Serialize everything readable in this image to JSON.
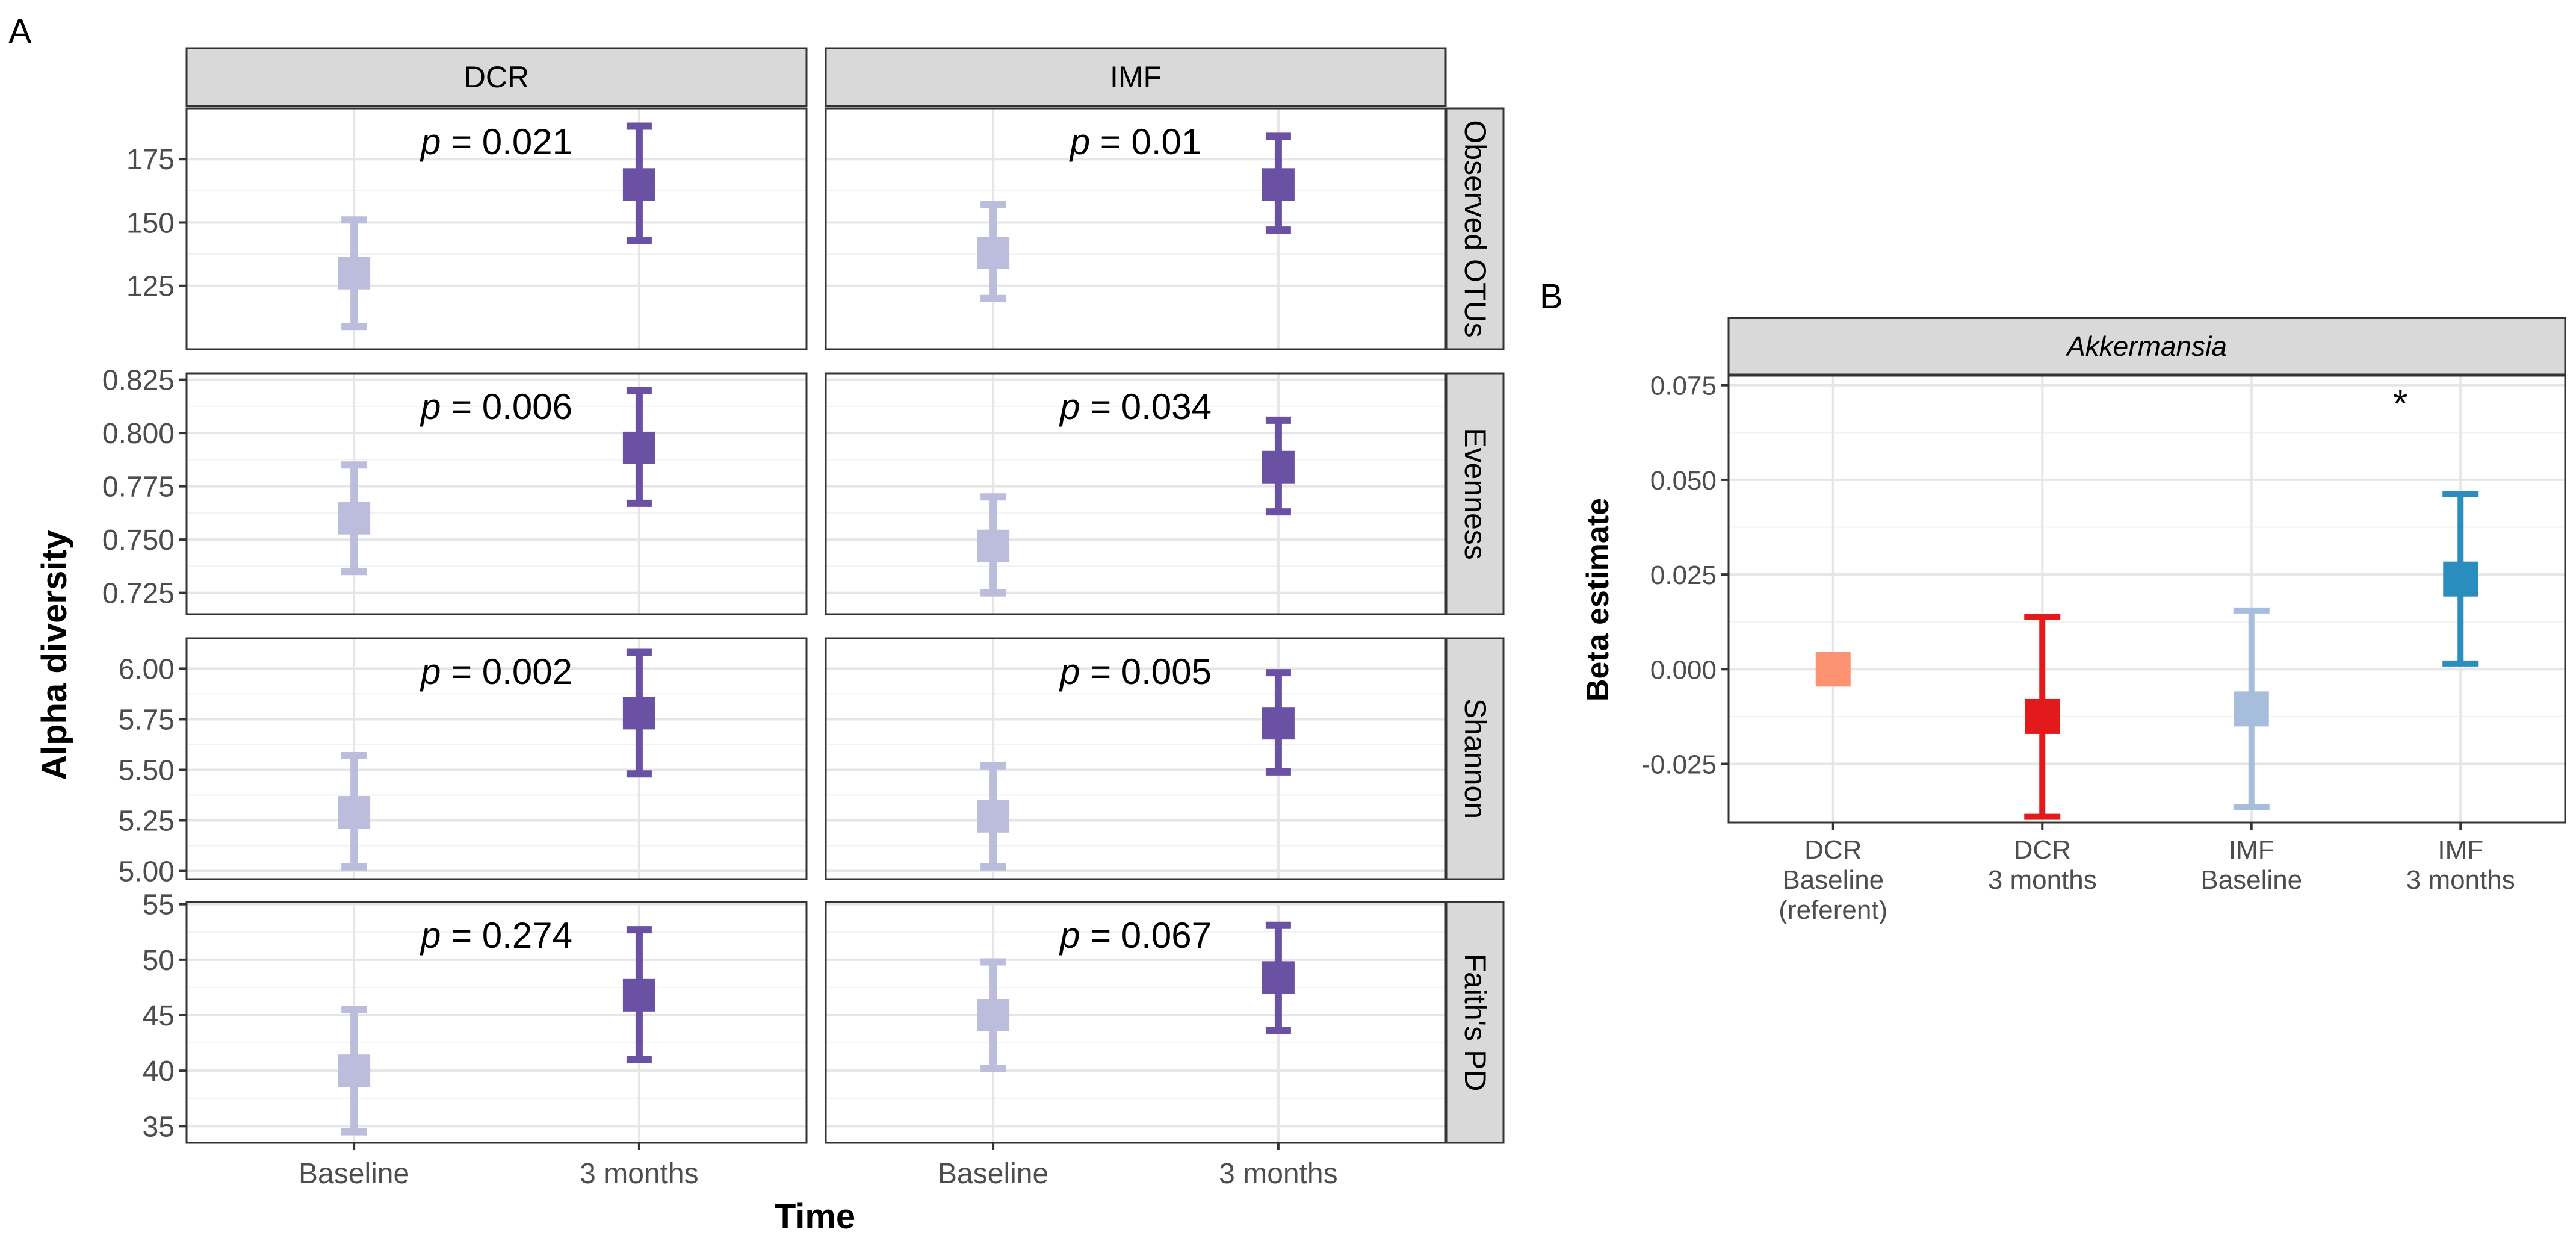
{
  "panel_a": {
    "label": "A",
    "xlabel": "Time",
    "ylabel": "Alpha diversity",
    "columns": [
      "DCR",
      "IMF"
    ],
    "categories": [
      "Baseline",
      "3 months"
    ],
    "colors": {
      "baseline": "#bcbddc",
      "followup": "#6a51a3"
    },
    "rows": [
      {
        "strip": "Observed OTUs",
        "ylim": [
          100,
          195
        ],
        "ticks": [
          125,
          150,
          175
        ],
        "tick_labels": [
          "125",
          "150",
          "175"
        ],
        "cells": [
          {
            "column": "DCR",
            "p_prefix": "p",
            "p_rest": " = 0.021",
            "baseline": {
              "mean": 130,
              "lo": 109,
              "hi": 151
            },
            "followup": {
              "mean": 165,
              "lo": 143,
              "hi": 188
            }
          },
          {
            "column": "IMF",
            "p_prefix": "p",
            "p_rest": " = 0.01",
            "baseline": {
              "mean": 138,
              "lo": 120,
              "hi": 157
            },
            "followup": {
              "mean": 165,
              "lo": 147,
              "hi": 184
            }
          }
        ]
      },
      {
        "strip": "Evenness",
        "ylim": [
          0.715,
          0.828
        ],
        "ticks": [
          0.725,
          0.75,
          0.775,
          0.8,
          0.825
        ],
        "tick_labels": [
          "0.725",
          "0.750",
          "0.775",
          "0.800",
          "0.825"
        ],
        "cells": [
          {
            "column": "DCR",
            "p_prefix": "p",
            "p_rest": " = 0.006",
            "baseline": {
              "mean": 0.76,
              "lo": 0.735,
              "hi": 0.785
            },
            "followup": {
              "mean": 0.793,
              "lo": 0.767,
              "hi": 0.82
            }
          },
          {
            "column": "IMF",
            "p_prefix": "p",
            "p_rest": " = 0.034",
            "baseline": {
              "mean": 0.747,
              "lo": 0.725,
              "hi": 0.77
            },
            "followup": {
              "mean": 0.784,
              "lo": 0.763,
              "hi": 0.806
            }
          }
        ]
      },
      {
        "strip": "Shannon",
        "ylim": [
          4.96,
          6.15
        ],
        "ticks": [
          5.0,
          5.25,
          5.5,
          5.75,
          6.0
        ],
        "tick_labels": [
          "5.00",
          "5.25",
          "5.50",
          "5.75",
          "6.00"
        ],
        "cells": [
          {
            "column": "DCR",
            "p_prefix": "p",
            "p_rest": " = 0.002",
            "baseline": {
              "mean": 5.29,
              "lo": 5.02,
              "hi": 5.57
            },
            "followup": {
              "mean": 5.78,
              "lo": 5.48,
              "hi": 6.08
            }
          },
          {
            "column": "IMF",
            "p_prefix": "p",
            "p_rest": " = 0.005",
            "baseline": {
              "mean": 5.27,
              "lo": 5.02,
              "hi": 5.52
            },
            "followup": {
              "mean": 5.73,
              "lo": 5.49,
              "hi": 5.98
            }
          }
        ]
      },
      {
        "strip": "Faith's PD",
        "ylim": [
          33.5,
          55.2
        ],
        "ticks": [
          35,
          40,
          45,
          50,
          55
        ],
        "tick_labels": [
          "35",
          "40",
          "45",
          "50",
          "55"
        ],
        "cells": [
          {
            "column": "DCR",
            "p_prefix": "p",
            "p_rest": " = 0.274",
            "baseline": {
              "mean": 40.0,
              "lo": 34.5,
              "hi": 45.5
            },
            "followup": {
              "mean": 46.8,
              "lo": 41.0,
              "hi": 52.7
            }
          },
          {
            "column": "IMF",
            "p_prefix": "p",
            "p_rest": " = 0.067",
            "baseline": {
              "mean": 45.0,
              "lo": 40.2,
              "hi": 49.8
            },
            "followup": {
              "mean": 48.4,
              "lo": 43.6,
              "hi": 53.1
            }
          }
        ]
      }
    ]
  },
  "panel_b": {
    "label": "B",
    "strip": "Akkermansia",
    "ylabel": "Beta estimate",
    "significance_mark": "*",
    "ylim": [
      -0.0405,
      0.0775
    ],
    "ticks": [
      -0.025,
      0.0,
      0.025,
      0.05,
      0.075
    ],
    "tick_labels": [
      "-0.025",
      "0.000",
      "0.025",
      "0.050",
      "0.075"
    ],
    "groups": [
      {
        "label_lines": [
          "DCR",
          "Baseline",
          "(referent)"
        ],
        "mean": 0.0,
        "lo": null,
        "hi": null,
        "color": "#fc9272"
      },
      {
        "label_lines": [
          "DCR",
          "3 months"
        ],
        "mean": -0.0125,
        "lo": -0.039,
        "hi": 0.0138,
        "color": "#e31a1c"
      },
      {
        "label_lines": [
          "IMF",
          "Baseline"
        ],
        "mean": -0.0105,
        "lo": -0.0365,
        "hi": 0.0155,
        "color": "#a6bddb"
      },
      {
        "label_lines": [
          "IMF",
          "3 months"
        ],
        "mean": 0.0238,
        "lo": 0.0015,
        "hi": 0.0462,
        "color": "#2b8cbe",
        "significant": true
      }
    ]
  },
  "chart_data": [
    {
      "type": "errorbar",
      "title": "A",
      "xlabel": "Time",
      "ylabel": "Alpha diversity",
      "facet_columns": [
        "DCR",
        "IMF"
      ],
      "facet_rows": [
        "Observed OTUs",
        "Evenness",
        "Shannon",
        "Faith's PD"
      ],
      "categories": [
        "Baseline",
        "3 months"
      ],
      "series": [
        {
          "name": "Observed OTUs / DCR",
          "means": [
            130,
            165
          ],
          "lower": [
            109,
            143
          ],
          "upper": [
            151,
            188
          ],
          "p_value": 0.021
        },
        {
          "name": "Observed OTUs / IMF",
          "means": [
            138,
            165
          ],
          "lower": [
            120,
            147
          ],
          "upper": [
            157,
            184
          ],
          "p_value": 0.01
        },
        {
          "name": "Evenness / DCR",
          "means": [
            0.76,
            0.793
          ],
          "lower": [
            0.735,
            0.767
          ],
          "upper": [
            0.785,
            0.82
          ],
          "p_value": 0.006
        },
        {
          "name": "Evenness / IMF",
          "means": [
            0.747,
            0.784
          ],
          "lower": [
            0.725,
            0.763
          ],
          "upper": [
            0.77,
            0.806
          ],
          "p_value": 0.034
        },
        {
          "name": "Shannon / DCR",
          "means": [
            5.29,
            5.78
          ],
          "lower": [
            5.02,
            5.48
          ],
          "upper": [
            5.57,
            6.08
          ],
          "p_value": 0.002
        },
        {
          "name": "Shannon / IMF",
          "means": [
            5.27,
            5.73
          ],
          "lower": [
            5.02,
            5.49
          ],
          "upper": [
            5.52,
            5.98
          ],
          "p_value": 0.005
        },
        {
          "name": "Faith's PD / DCR",
          "means": [
            40.0,
            46.8
          ],
          "lower": [
            34.5,
            41.0
          ],
          "upper": [
            45.5,
            52.7
          ],
          "p_value": 0.274
        },
        {
          "name": "Faith's PD / IMF",
          "means": [
            45.0,
            48.4
          ],
          "lower": [
            40.2,
            43.6
          ],
          "upper": [
            49.8,
            53.1
          ],
          "p_value": 0.067
        }
      ]
    },
    {
      "type": "errorbar",
      "title": "B — Akkermansia",
      "ylabel": "Beta estimate",
      "categories": [
        "DCR Baseline (referent)",
        "DCR 3 months",
        "IMF Baseline",
        "IMF 3 months"
      ],
      "values": [
        0.0,
        -0.0125,
        -0.0105,
        0.0238
      ],
      "lower": [
        null,
        -0.039,
        -0.0365,
        0.0015
      ],
      "upper": [
        null,
        0.0138,
        0.0155,
        0.0462
      ],
      "ylim": [
        -0.0405,
        0.0775
      ],
      "annotations": [
        {
          "category": "IMF 3 months",
          "text": "*"
        }
      ]
    }
  ]
}
